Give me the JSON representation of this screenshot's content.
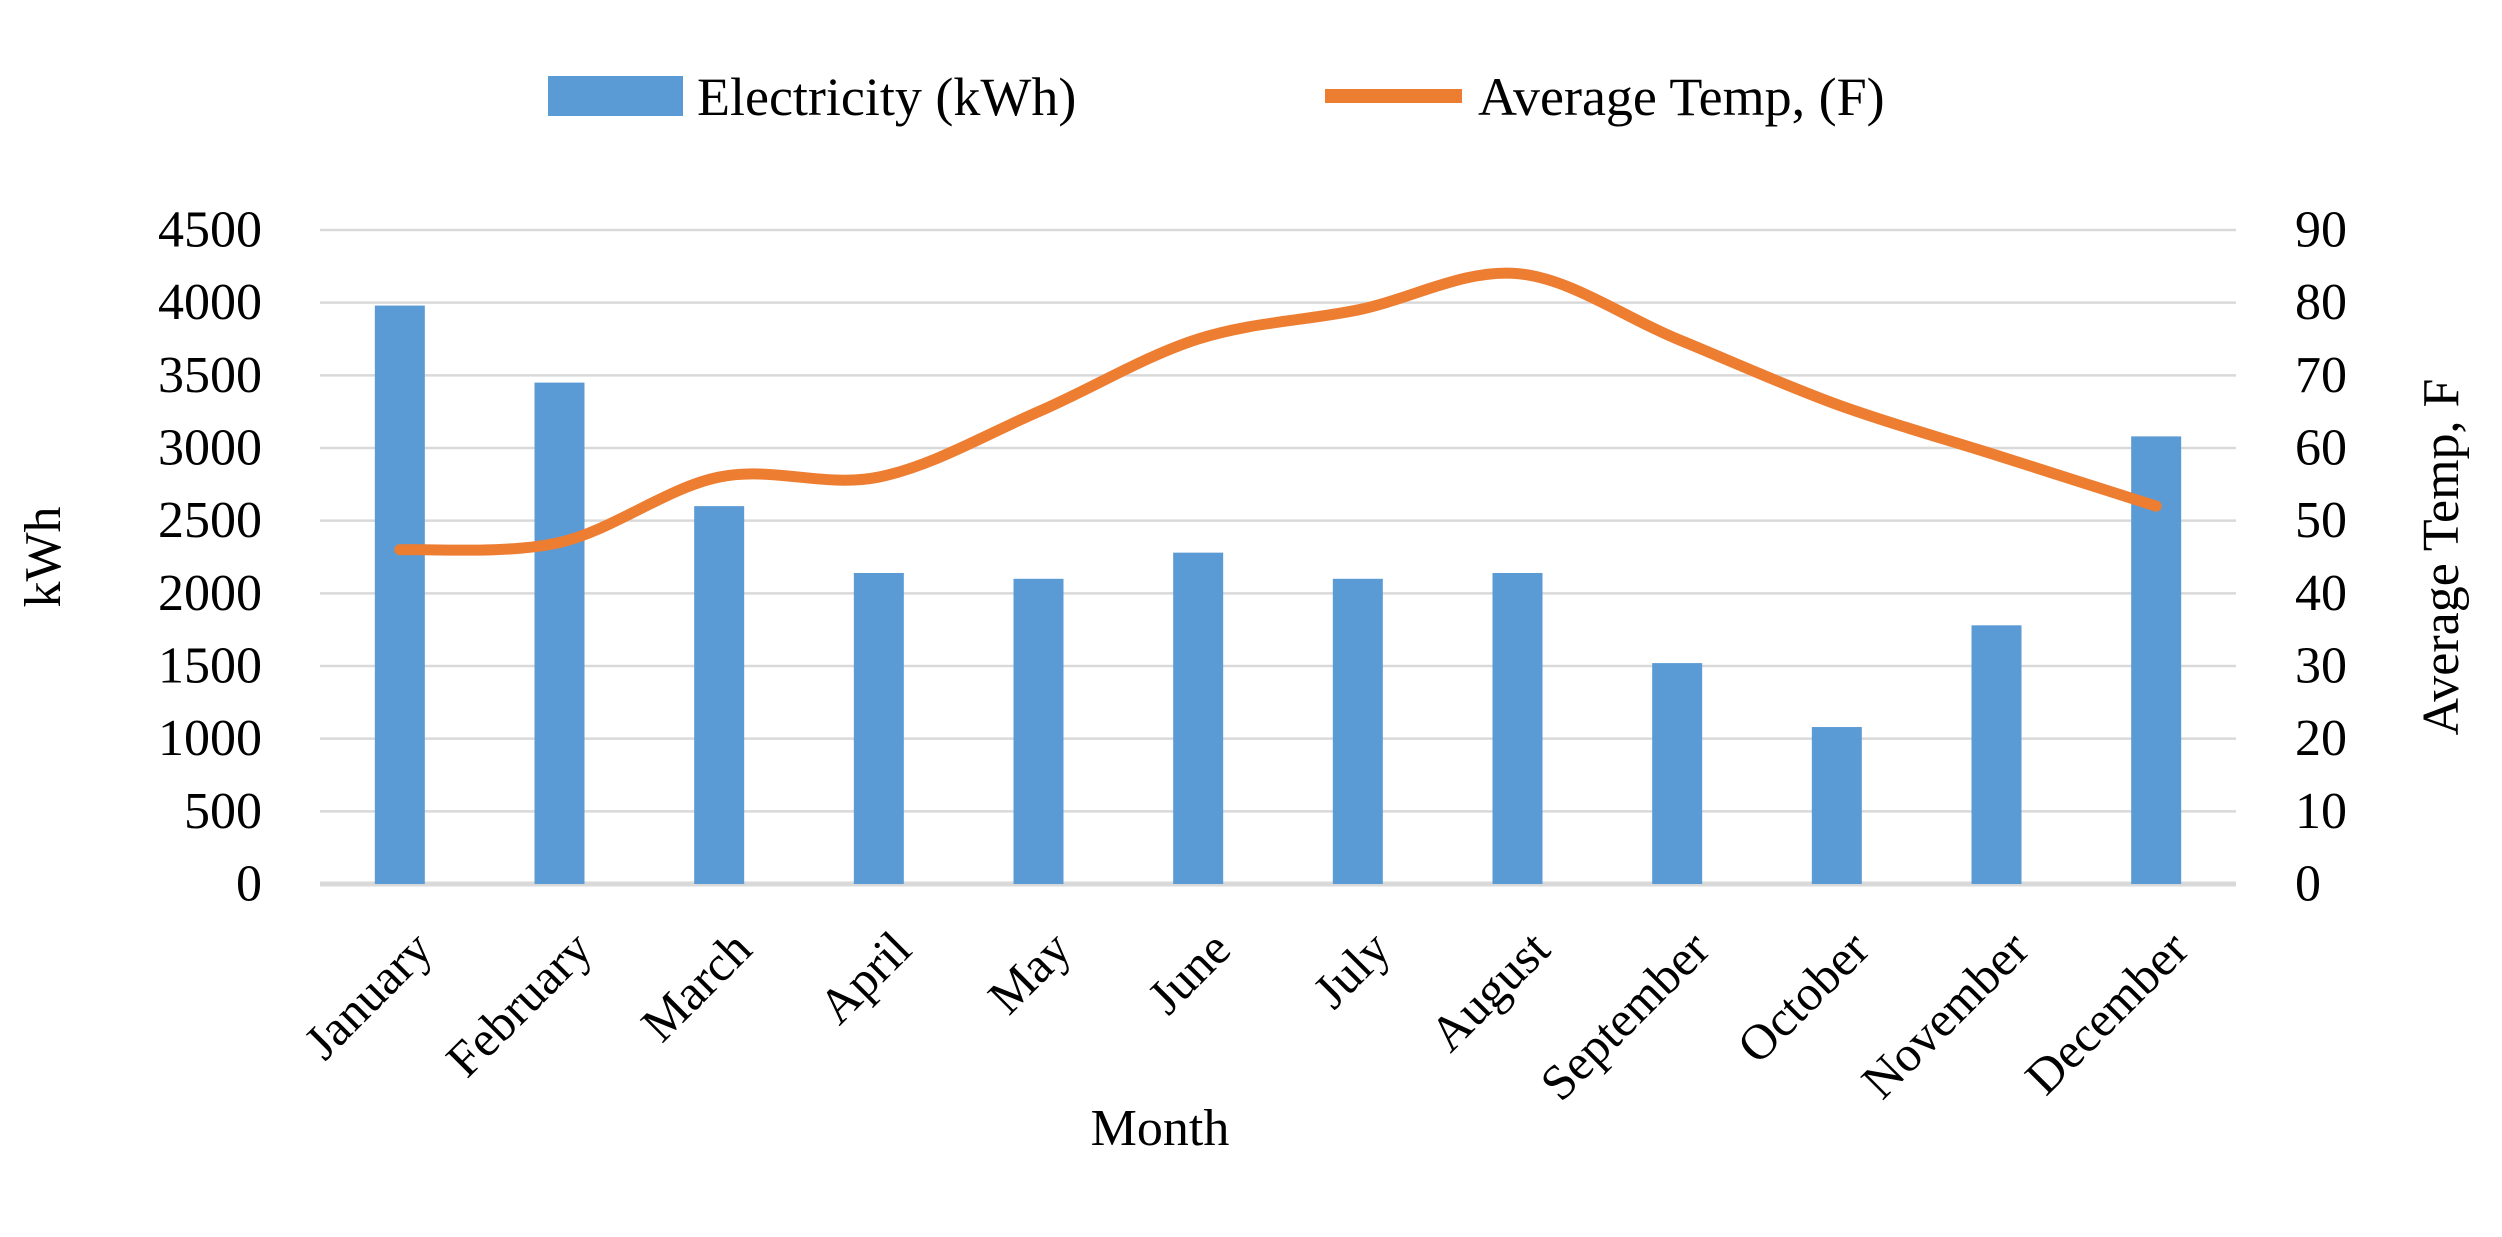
{
  "page": {
    "background": "#ffffff"
  },
  "legend": {
    "position": "top",
    "items": [
      {
        "label": "Electricity (kWh)",
        "color": "#5B9BD5",
        "swatch": "bar"
      },
      {
        "label": "Average Temp, (F)",
        "color": "#ED7D31",
        "swatch": "line"
      }
    ]
  },
  "chart_data": {
    "type": "combo-bar-line",
    "categories": [
      "January",
      "February",
      "March",
      "April",
      "May",
      "June",
      "July",
      "August",
      "September",
      "October",
      "November",
      "December"
    ],
    "series": [
      {
        "name": "Electricity (kWh)",
        "type": "bar",
        "axis": "left",
        "color": "#5B9BD5",
        "values": [
          3980,
          3450,
          2600,
          2140,
          2100,
          2280,
          2100,
          2140,
          1520,
          1080,
          1780,
          3080
        ]
      },
      {
        "name": "Average Temp, (F)",
        "type": "line",
        "axis": "right",
        "color": "#ED7D31",
        "smoothed": true,
        "values": [
          46,
          47,
          56,
          56,
          65,
          75,
          79,
          84,
          75,
          66,
          59,
          52
        ]
      }
    ],
    "left_axis": {
      "title": "kWh",
      "min": 0,
      "max": 4500,
      "step": 500,
      "ticks": [
        "0",
        "500",
        "1000",
        "1500",
        "2000",
        "2500",
        "3000",
        "3500",
        "4000",
        "4500"
      ]
    },
    "right_axis": {
      "title": "Average Temp, F",
      "min": 0,
      "max": 90,
      "step": 10,
      "ticks": [
        "0",
        "10",
        "20",
        "30",
        "40",
        "50",
        "60",
        "70",
        "80",
        "90"
      ]
    },
    "x_axis": {
      "title": "Month"
    },
    "gridlines": {
      "show": true,
      "color": "#D9D9D9"
    },
    "legend_position": "top"
  }
}
